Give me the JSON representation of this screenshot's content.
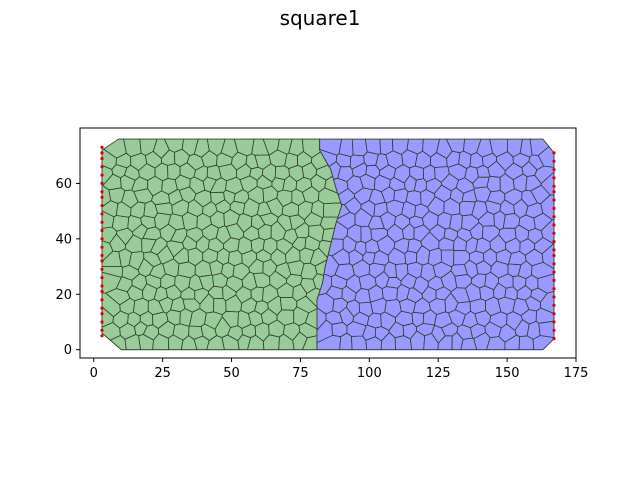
{
  "chart_data": {
    "type": "mesh",
    "title": "square1",
    "xlabel": "",
    "ylabel": "",
    "xlim": [
      -5,
      175
    ],
    "ylim": [
      -3,
      80
    ],
    "x_ticks": [
      0,
      25,
      50,
      75,
      100,
      125,
      150,
      175
    ],
    "y_ticks": [
      0,
      20,
      40,
      60
    ],
    "grid": false,
    "regions": [
      {
        "color": "#99cc99",
        "boundary": [
          [
            3,
            72
          ],
          [
            9,
            76
          ],
          [
            82,
            76
          ],
          [
            82,
            72
          ],
          [
            86,
            65
          ],
          [
            88,
            58
          ],
          [
            90,
            52
          ],
          [
            88,
            46
          ],
          [
            86,
            38
          ],
          [
            84,
            30
          ],
          [
            83,
            24
          ],
          [
            81,
            18
          ],
          [
            81,
            0
          ],
          [
            10,
            0
          ],
          [
            3,
            6
          ]
        ]
      },
      {
        "color": "#9999ff",
        "boundary": [
          [
            82,
            76
          ],
          [
            163,
            76
          ],
          [
            167,
            71
          ],
          [
            167,
            4
          ],
          [
            163,
            0
          ],
          [
            81,
            0
          ],
          [
            81,
            18
          ],
          [
            83,
            24
          ],
          [
            84,
            30
          ],
          [
            86,
            38
          ],
          [
            88,
            46
          ],
          [
            90,
            52
          ],
          [
            88,
            58
          ],
          [
            86,
            65
          ],
          [
            82,
            72
          ]
        ]
      }
    ],
    "boundary_points_left": {
      "x": 3,
      "y": [
        73,
        71,
        69,
        66,
        63,
        60,
        57,
        55,
        52,
        49,
        46,
        43,
        40,
        37,
        34,
        32,
        29,
        26,
        23,
        21,
        18,
        15,
        13,
        10,
        7,
        5
      ]
    },
    "boundary_points_right": {
      "x": 167,
      "y": [
        71,
        68,
        65,
        62,
        59,
        57,
        54,
        51,
        48,
        45,
        42,
        39,
        36,
        34,
        31,
        28,
        25,
        22,
        19,
        16,
        13,
        10,
        7,
        4
      ]
    },
    "colors": {
      "edge": "#2f3f2f",
      "boundary_point": "#dd0000"
    }
  }
}
